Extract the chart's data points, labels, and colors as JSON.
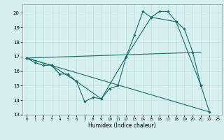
{
  "title": "",
  "xlabel": "Humidex (Indice chaleur)",
  "bg_color": "#d6f0f0",
  "line_color": "#1a6b6b",
  "grid_color": "#c0e0e0",
  "xlim": [
    -0.5,
    23.5
  ],
  "ylim": [
    13,
    20.6
  ],
  "yticks": [
    13,
    14,
    15,
    16,
    17,
    18,
    19,
    20
  ],
  "xticks": [
    0,
    1,
    2,
    3,
    4,
    5,
    6,
    7,
    8,
    9,
    10,
    11,
    12,
    13,
    14,
    15,
    16,
    17,
    18,
    19,
    20,
    21,
    22,
    23
  ],
  "series": [
    {
      "x": [
        0,
        1,
        2,
        3,
        4,
        5,
        6,
        7,
        8,
        9,
        10,
        11,
        12,
        13,
        14,
        15,
        16,
        17,
        18,
        19,
        20,
        21,
        22
      ],
      "y": [
        16.9,
        16.6,
        16.4,
        16.4,
        15.8,
        15.8,
        15.3,
        13.9,
        14.2,
        14.1,
        14.8,
        15.0,
        17.0,
        18.5,
        20.1,
        19.7,
        20.1,
        20.1,
        19.4,
        18.9,
        17.3,
        15.0,
        13.2
      ]
    },
    {
      "x": [
        0,
        3,
        6,
        9,
        12,
        15,
        18,
        21
      ],
      "y": [
        16.9,
        16.4,
        15.3,
        14.1,
        17.0,
        19.7,
        19.4,
        15.0
      ]
    },
    {
      "x": [
        0,
        22
      ],
      "y": [
        16.9,
        13.2
      ]
    },
    {
      "x": [
        0,
        21
      ],
      "y": [
        16.9,
        17.3
      ]
    }
  ]
}
